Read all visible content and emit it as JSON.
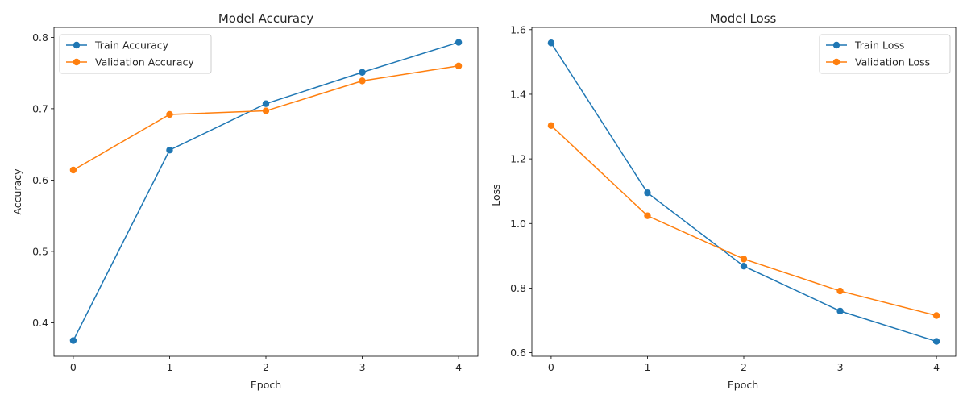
{
  "chart_data": [
    {
      "type": "line",
      "title": "Model Accuracy",
      "xlabel": "Epoch",
      "ylabel": "Accuracy",
      "x": [
        0,
        1,
        2,
        3,
        4
      ],
      "xlim": [
        -0.2,
        4.2
      ],
      "ylim": [
        0.353,
        0.814
      ],
      "xticks": [
        0,
        1,
        2,
        3,
        4
      ],
      "yticks": [
        0.4,
        0.5,
        0.6,
        0.7,
        0.8
      ],
      "tick_decimals": 1,
      "grid": false,
      "legend_position": "upper-left",
      "series": [
        {
          "name": "Train Accuracy",
          "color": "#1f77b4",
          "values": [
            0.375,
            0.642,
            0.707,
            0.751,
            0.793
          ]
        },
        {
          "name": "Validation Accuracy",
          "color": "#ff7f0e",
          "values": [
            0.614,
            0.692,
            0.697,
            0.739,
            0.76
          ]
        }
      ]
    },
    {
      "type": "line",
      "title": "Model Loss",
      "xlabel": "Epoch",
      "ylabel": "Loss",
      "x": [
        0,
        1,
        2,
        3,
        4
      ],
      "xlim": [
        -0.2,
        4.2
      ],
      "ylim": [
        0.589,
        1.607
      ],
      "xticks": [
        0,
        1,
        2,
        3,
        4
      ],
      "yticks": [
        0.6,
        0.8,
        1.0,
        1.2,
        1.4,
        1.6
      ],
      "tick_decimals": 1,
      "grid": false,
      "legend_position": "upper-right",
      "series": [
        {
          "name": "Train Loss",
          "color": "#1f77b4",
          "values": [
            1.559,
            1.095,
            0.868,
            0.729,
            0.635
          ]
        },
        {
          "name": "Validation Loss",
          "color": "#ff7f0e",
          "values": [
            1.303,
            1.024,
            0.89,
            0.791,
            0.715
          ]
        }
      ]
    }
  ]
}
